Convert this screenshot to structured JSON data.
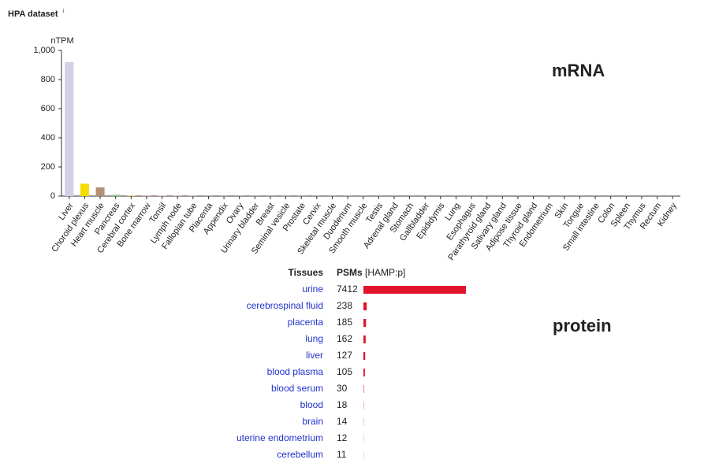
{
  "header": {
    "title": "HPA dataset",
    "info": "i"
  },
  "chart_data": [
    {
      "type": "bar",
      "annotation": "mRNA",
      "ylabel": "nTPM",
      "categories": [
        "Liver",
        "Choroid plexus",
        "Heart muscle",
        "Pancreas",
        "Cerebral cortex",
        "Bone marrow",
        "Tonsil",
        "Lymph node",
        "Fallopian tube",
        "Placenta",
        "Appendix",
        "Ovary",
        "Urinary bladder",
        "Breast",
        "Seminal vesicle",
        "Prostate",
        "Cervix",
        "Skeletal muscle",
        "Duodenum",
        "Smooth muscle",
        "Testis",
        "Adrenal gland",
        "Stomach",
        "Gallbladder",
        "Epididymis",
        "Lung",
        "Esophagus",
        "Parathyroid gland",
        "Salivary gland",
        "Adipose tissue",
        "Thyroid gland",
        "Endometrium",
        "Skin",
        "Tongue",
        "Small intestine",
        "Colon",
        "Spleen",
        "Thymus",
        "Rectum",
        "Kidney"
      ],
      "values": [
        920,
        85,
        60,
        10,
        5,
        4,
        3,
        3,
        2,
        1,
        1,
        1,
        1,
        1,
        1,
        1,
        1,
        1,
        1,
        1,
        0.5,
        0.5,
        0.5,
        0.5,
        0.5,
        0.5,
        0.5,
        0.5,
        0.5,
        0.5,
        0.5,
        0.5,
        0.5,
        0.5,
        0.5,
        0.5,
        0.5,
        0.5,
        0.5,
        0.5
      ],
      "colors": [
        "#d2cfe6",
        "#f5dc00",
        "#b49075",
        "#8fcf8f",
        "#f0d060",
        "#d9a5a5",
        "#d9a5a5",
        "#d99090",
        "#d99090",
        "#d9a5a5",
        "#d9a5a5",
        "#d99090",
        "#d9a5a5",
        "#d99090",
        "#d9a5a5",
        "#d99090",
        "#d99090",
        "#b49075",
        "#8fcf8f",
        "#b49075",
        "#d9a5a5",
        "#8fcf8f",
        "#8fcf8f",
        "#8fcf8f",
        "#d9a5a5",
        "#d9a5a5",
        "#8fcf8f",
        "#8fcf8f",
        "#8fcf8f",
        "#d9a5a5",
        "#8fcf8f",
        "#d99090",
        "#d9a5a5",
        "#8fcf8f",
        "#8fcf8f",
        "#8fcf8f",
        "#d99090",
        "#d99090",
        "#8fcf8f",
        "#d9a5a5"
      ],
      "ylim": [
        0,
        1000
      ],
      "yticks": [
        0,
        200,
        400,
        600,
        800,
        {
          "value": 1000,
          "label": "1,000"
        }
      ]
    },
    {
      "type": "bar",
      "orientation": "horizontal",
      "annotation": "protein",
      "column_headers": [
        "Tissues",
        "PSMs"
      ],
      "unit_note": "[HAMP:p]",
      "categories": [
        "urine",
        "cerebrospinal fluid",
        "placenta",
        "lung",
        "liver",
        "blood plasma",
        "blood serum",
        "blood",
        "brain",
        "uterine endometrium",
        "cerebellum"
      ],
      "values": [
        7412,
        238,
        185,
        162,
        127,
        105,
        30,
        18,
        14,
        12,
        11
      ],
      "color": "#e0142c"
    }
  ]
}
